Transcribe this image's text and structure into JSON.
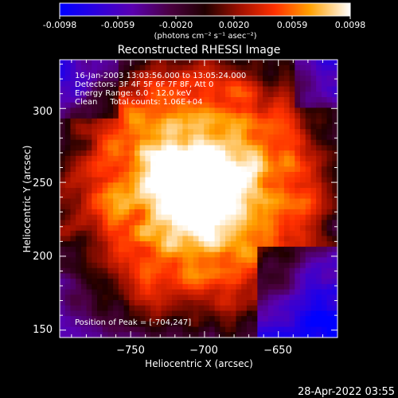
{
  "colorbar": {
    "tick_labels": [
      "-0.0098",
      "-0.0059",
      "-0.0020",
      "0.0020",
      "0.0059",
      "0.0098"
    ],
    "unit_label": "(photons cm⁻² s⁻¹ asec⁻²)",
    "range": [
      -0.0098,
      0.0098
    ]
  },
  "chart_data": {
    "type": "heatmap",
    "title": "Reconstructed RHESSI Image",
    "xlabel": "Heliocentric X (arcsec)",
    "ylabel": "Heliocentric Y (arcsec)",
    "xlim": [
      -798,
      -610
    ],
    "ylim": [
      145,
      333
    ],
    "x_ticks": [
      -750,
      -700,
      -650
    ],
    "x_tick_labels": [
      "−750",
      "−700",
      "−650"
    ],
    "y_ticks": [
      150,
      200,
      250,
      300
    ],
    "y_tick_labels": [
      "150",
      "200",
      "250",
      "300"
    ],
    "peak": {
      "x": -704,
      "y": 247,
      "value": 0.0098
    },
    "annotations": [
      "16-Jan-2003 13:03:56.000 to 13:05:24.000",
      "Detectors: 3F 4F 5F 6F 7F 8F, Att 0",
      "Energy Range: 6.0 - 12.0 keV",
      "Clean     Total counts: 1.06E+04"
    ],
    "peak_label": "Position of Peak = [-704,247]"
  },
  "footer": {
    "timestamp": "28-Apr-2022 03:55"
  },
  "colors": {
    "background": "#000000",
    "foreground": "#ffffff"
  }
}
